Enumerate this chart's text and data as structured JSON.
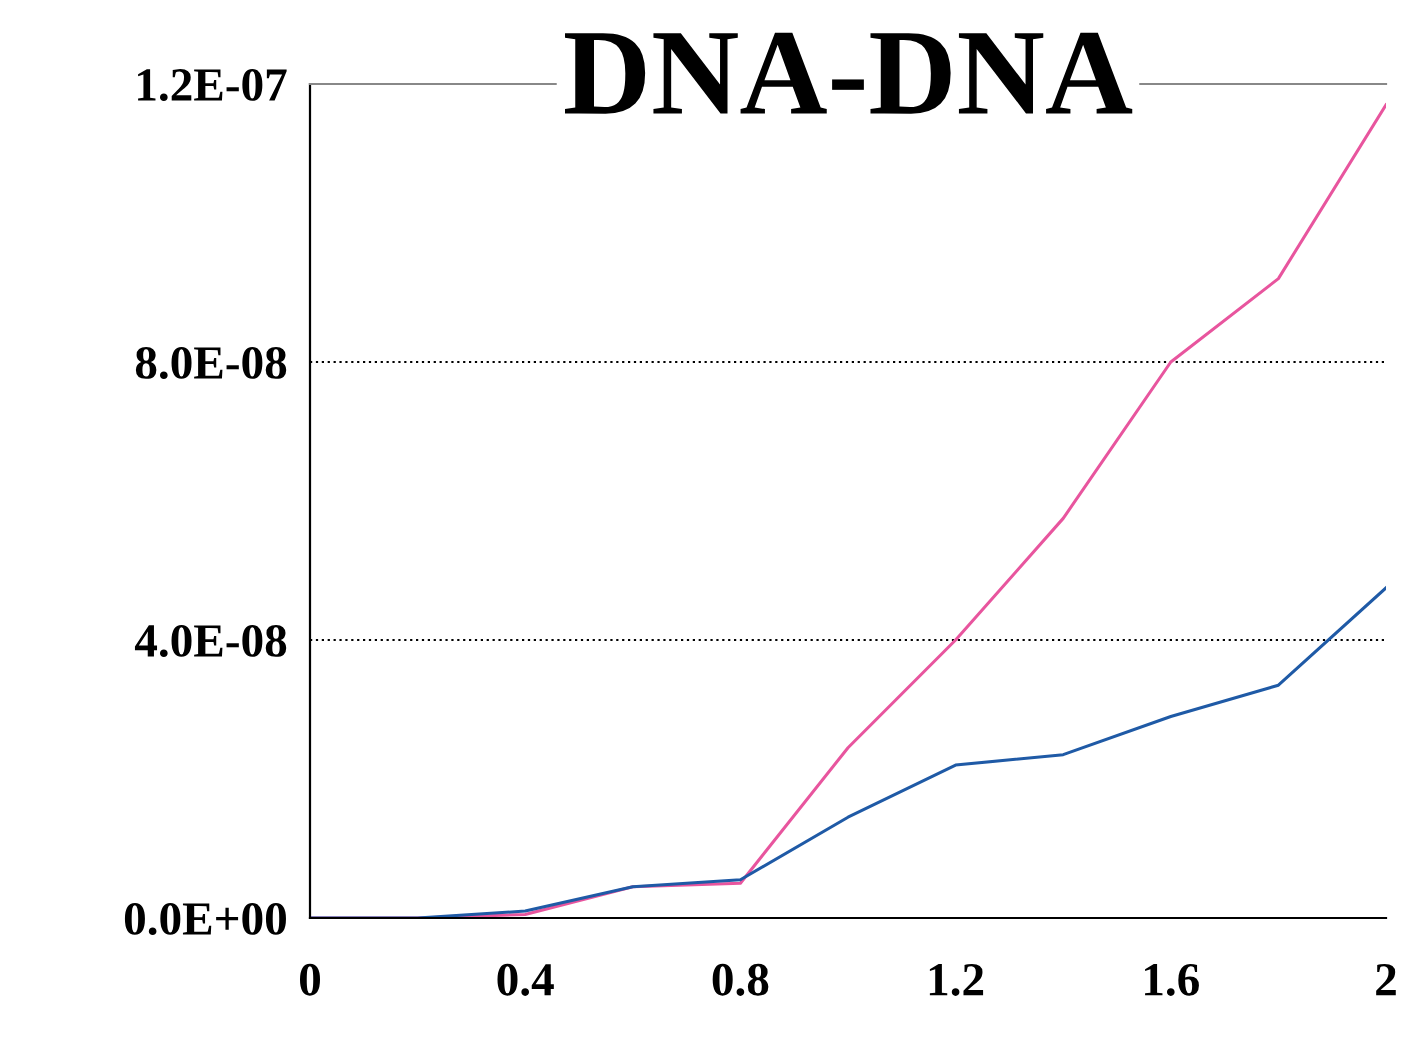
{
  "chart_data": {
    "type": "line",
    "title": "DNA-DNA",
    "x": [
      0,
      0.2,
      0.4,
      0.6,
      0.8,
      1.0,
      1.2,
      1.4,
      1.6,
      1.8,
      2.0
    ],
    "series": [
      {
        "color": "#e8559e",
        "values": [
          0,
          0,
          5e-10,
          4.5e-09,
          5e-09,
          2.45e-08,
          4e-08,
          5.75e-08,
          8e-08,
          9.2e-08,
          1.17e-07
        ]
      },
      {
        "color": "#1f5aa6",
        "values": [
          0,
          0,
          1e-09,
          4.5e-09,
          5.5e-09,
          1.45e-08,
          2.2e-08,
          2.35e-08,
          2.9e-08,
          3.35e-08,
          4.75e-08
        ]
      }
    ],
    "xlim": [
      0,
      2
    ],
    "xticks": [
      0,
      0.4,
      0.8,
      1.2,
      1.6,
      2
    ],
    "ylim": [
      0,
      1.2e-07
    ],
    "yticks": [
      {
        "value": 0,
        "label": "0.0E+00"
      },
      {
        "value": 4e-08,
        "label": "4.0E-08"
      },
      {
        "value": 8e-08,
        "label": "8.0E-08"
      },
      {
        "value": 1.2e-07,
        "label": "1.2E-07"
      }
    ],
    "grid": "y",
    "line_style": "solid",
    "marker": "none",
    "legend": false
  }
}
